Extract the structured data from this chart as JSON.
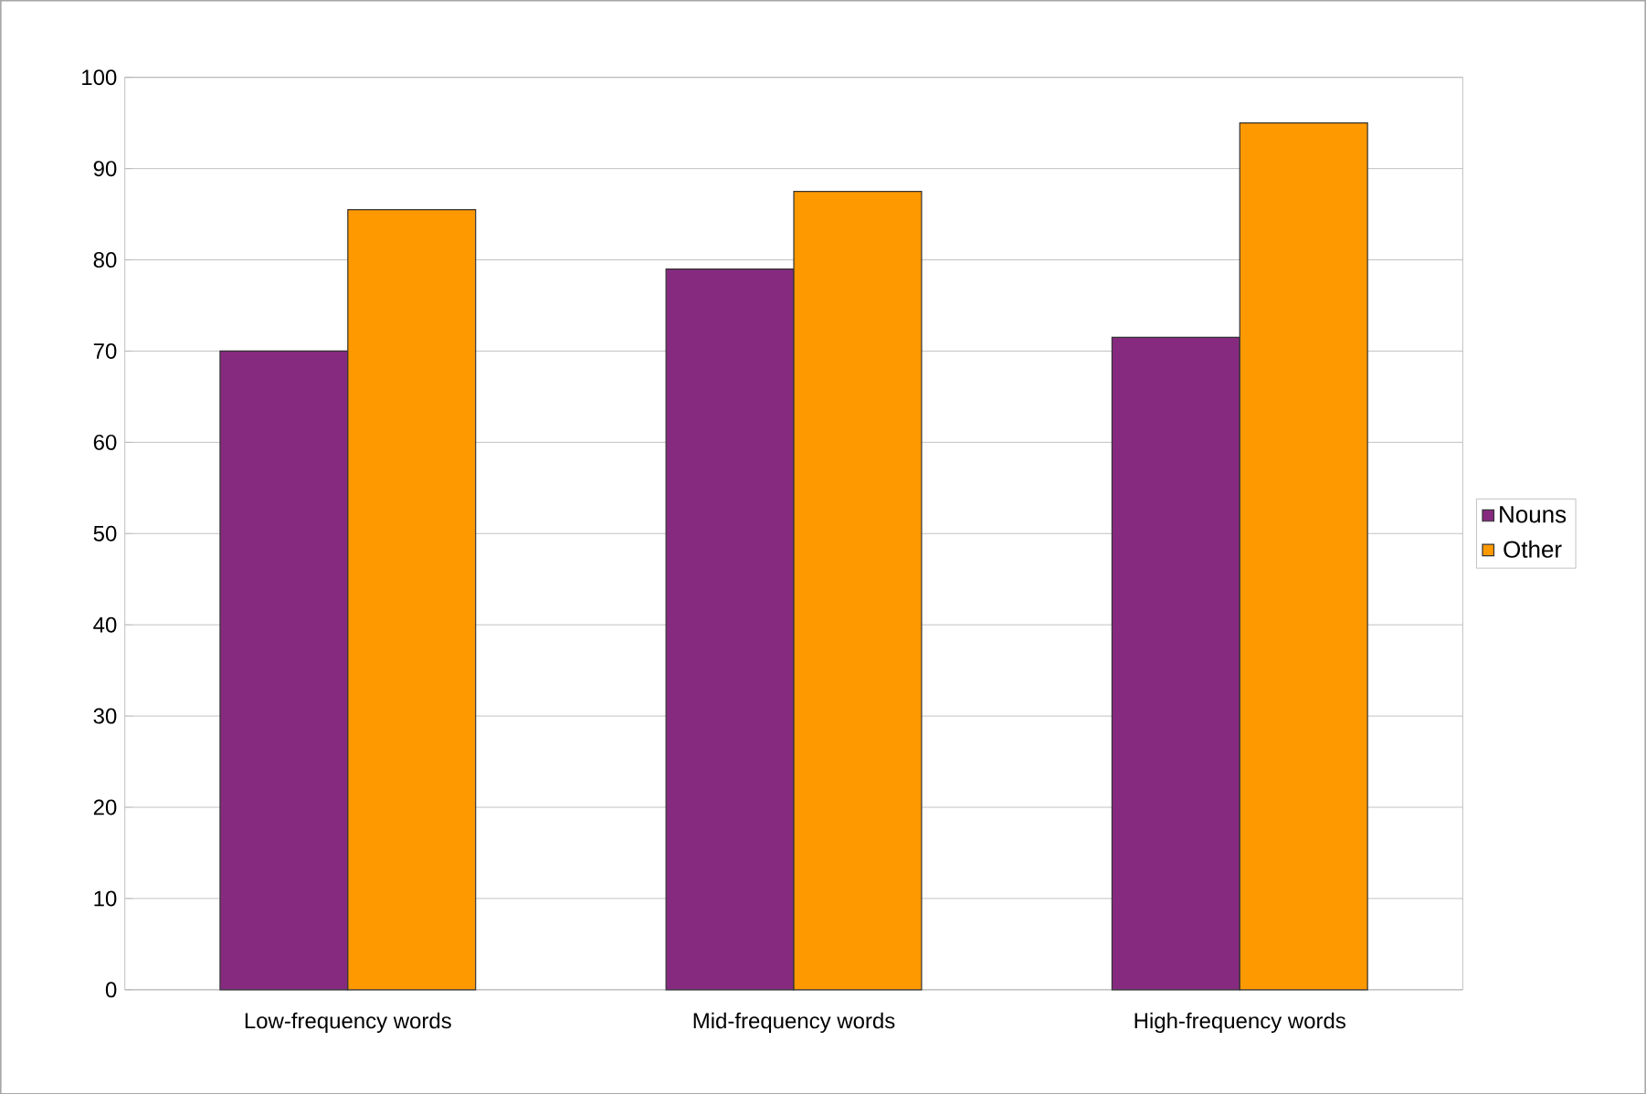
{
  "chart_data": {
    "type": "bar",
    "categories": [
      "Low-frequency words",
      "Mid-frequency words",
      "High-frequency words"
    ],
    "series": [
      {
        "name": "Nouns",
        "color": "#862a80",
        "values": [
          70,
          79,
          71.5
        ]
      },
      {
        "name": "Other",
        "color": "#ff9900",
        "values": [
          85.5,
          87.5,
          95
        ]
      }
    ],
    "ylim": [
      0,
      100
    ],
    "yticks": [
      0,
      10,
      20,
      30,
      40,
      50,
      60,
      70,
      80,
      90,
      100
    ],
    "grid": "y",
    "legend": "right"
  }
}
